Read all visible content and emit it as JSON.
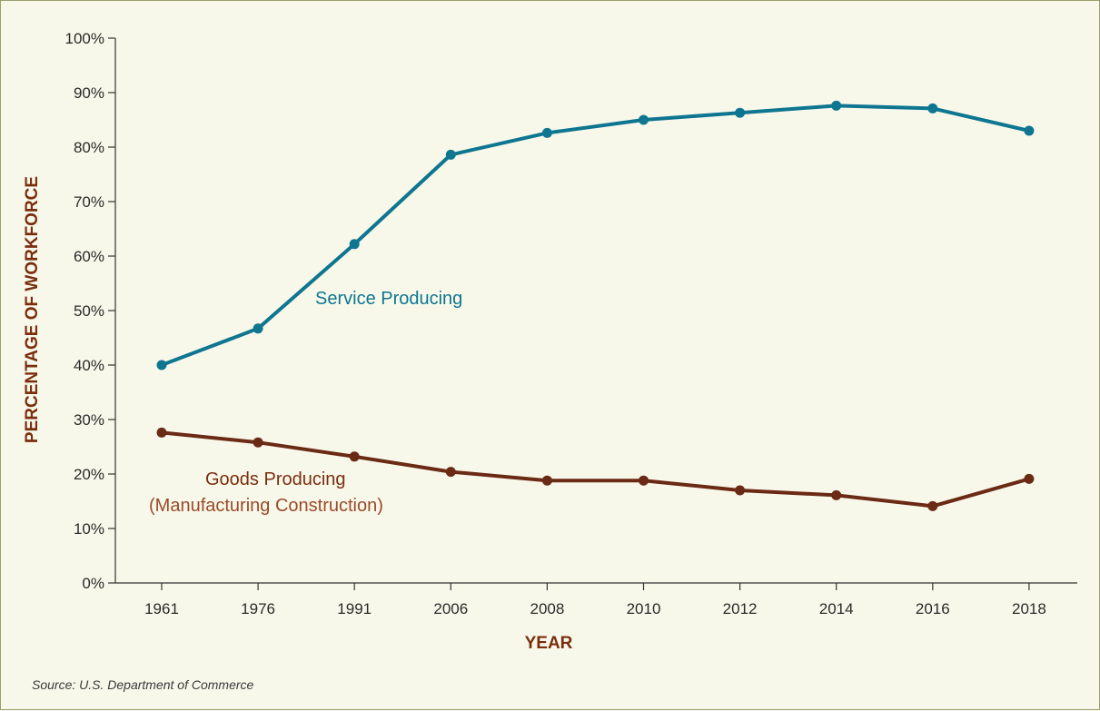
{
  "chart_data": {
    "type": "line",
    "categories": [
      "1961",
      "1976",
      "1991",
      "2006",
      "2008",
      "2010",
      "2012",
      "2014",
      "2016",
      "2018"
    ],
    "series": [
      {
        "name": "Service Producing",
        "color": "#0e7690",
        "values": [
          40,
          46.7,
          62.2,
          78.6,
          82.6,
          85,
          86.3,
          87.6,
          87.1,
          83
        ]
      },
      {
        "name": "Goods Producing",
        "subtitle": "(Manufacturing Construction)",
        "color": "#6a2a14",
        "values": [
          27.6,
          25.8,
          23.2,
          20.4,
          18.8,
          18.8,
          17,
          16.1,
          14.1,
          19.1
        ]
      }
    ],
    "xlabel": "YEAR",
    "ylabel": "PERCENTAGE OF WORKFORCE",
    "ylim": [
      0,
      100
    ],
    "yticks": [
      "0%",
      "10%",
      "20%",
      "30%",
      "40%",
      "50%",
      "60%",
      "70%",
      "80%",
      "90%",
      "100%"
    ],
    "grid": false,
    "source": "Source: U.S. Department of Commerce"
  }
}
